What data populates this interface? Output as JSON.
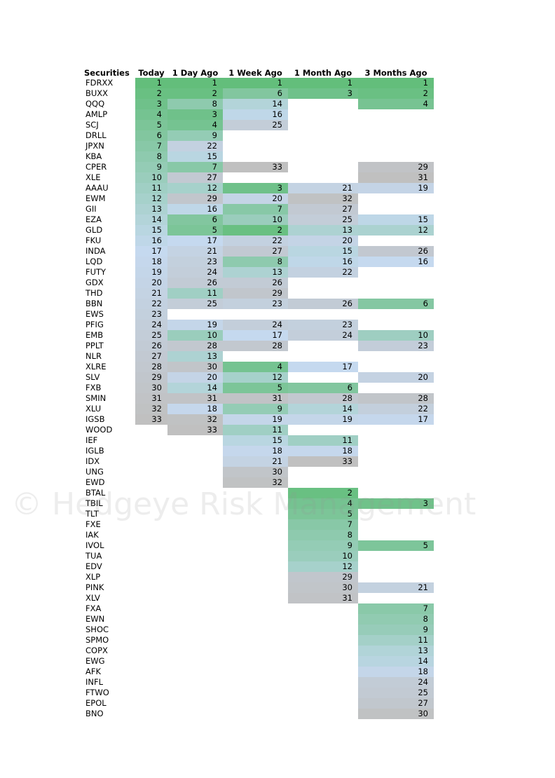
{
  "headers": [
    "Securities",
    "Today",
    "1 Day Ago",
    "1 Week Ago",
    "1 Month Ago",
    "3 Months Ago"
  ],
  "rows": [
    {
      "s": "FDRXX",
      "v": [
        1,
        1,
        1,
        1,
        1
      ]
    },
    {
      "s": "BUXX",
      "v": [
        2,
        2,
        6,
        3,
        2
      ]
    },
    {
      "s": "QQQ",
      "v": [
        3,
        8,
        14,
        null,
        4
      ]
    },
    {
      "s": "AMLP",
      "v": [
        4,
        3,
        16,
        null,
        null
      ]
    },
    {
      "s": "SCJ",
      "v": [
        5,
        4,
        25,
        null,
        null
      ]
    },
    {
      "s": "DRLL",
      "v": [
        6,
        9,
        null,
        null,
        null
      ]
    },
    {
      "s": "JPXN",
      "v": [
        7,
        22,
        null,
        null,
        null
      ]
    },
    {
      "s": "KBA",
      "v": [
        8,
        15,
        null,
        null,
        null
      ]
    },
    {
      "s": "CPER",
      "v": [
        9,
        7,
        33,
        null,
        29
      ]
    },
    {
      "s": "XLE",
      "v": [
        10,
        27,
        null,
        null,
        31
      ]
    },
    {
      "s": "AAAU",
      "v": [
        11,
        12,
        3,
        21,
        19
      ]
    },
    {
      "s": "EWM",
      "v": [
        12,
        29,
        20,
        32,
        null
      ]
    },
    {
      "s": "GII",
      "v": [
        13,
        16,
        7,
        27,
        null
      ]
    },
    {
      "s": "EZA",
      "v": [
        14,
        6,
        10,
        25,
        15
      ]
    },
    {
      "s": "GLD",
      "v": [
        15,
        5,
        2,
        13,
        12
      ]
    },
    {
      "s": "FKU",
      "v": [
        16,
        17,
        22,
        20,
        null
      ]
    },
    {
      "s": "INDA",
      "v": [
        17,
        21,
        27,
        15,
        26
      ]
    },
    {
      "s": "LQD",
      "v": [
        18,
        23,
        8,
        16,
        16
      ]
    },
    {
      "s": "FUTY",
      "v": [
        19,
        24,
        13,
        22,
        null
      ]
    },
    {
      "s": "GDX",
      "v": [
        20,
        26,
        26,
        null,
        null
      ]
    },
    {
      "s": "THD",
      "v": [
        21,
        11,
        29,
        null,
        null
      ]
    },
    {
      "s": "BBN",
      "v": [
        22,
        25,
        23,
        26,
        6
      ]
    },
    {
      "s": "EWS",
      "v": [
        23,
        null,
        null,
        null,
        null
      ]
    },
    {
      "s": "PFIG",
      "v": [
        24,
        19,
        24,
        23,
        null
      ]
    },
    {
      "s": "EMB",
      "v": [
        25,
        10,
        17,
        24,
        10
      ]
    },
    {
      "s": "PPLT",
      "v": [
        26,
        28,
        28,
        null,
        23
      ]
    },
    {
      "s": "NLR",
      "v": [
        27,
        13,
        null,
        null,
        null
      ]
    },
    {
      "s": "XLRE",
      "v": [
        28,
        30,
        4,
        17,
        null
      ]
    },
    {
      "s": "SLV",
      "v": [
        29,
        20,
        12,
        null,
        20
      ]
    },
    {
      "s": "FXB",
      "v": [
        30,
        14,
        5,
        6,
        null
      ]
    },
    {
      "s": "SMIN",
      "v": [
        31,
        31,
        31,
        28,
        28
      ]
    },
    {
      "s": "XLU",
      "v": [
        32,
        18,
        9,
        14,
        22
      ]
    },
    {
      "s": "IGSB",
      "v": [
        33,
        32,
        19,
        19,
        17
      ]
    },
    {
      "s": "WOOD",
      "v": [
        null,
        33,
        11,
        null,
        null
      ]
    },
    {
      "s": "IEF",
      "v": [
        null,
        null,
        15,
        11,
        null
      ]
    },
    {
      "s": "IGLB",
      "v": [
        null,
        null,
        18,
        18,
        null
      ]
    },
    {
      "s": "IDX",
      "v": [
        null,
        null,
        21,
        33,
        null
      ]
    },
    {
      "s": "UNG",
      "v": [
        null,
        null,
        30,
        null,
        null
      ]
    },
    {
      "s": "EWD",
      "v": [
        null,
        null,
        32,
        null,
        null
      ]
    },
    {
      "s": "BTAL",
      "v": [
        null,
        null,
        null,
        2,
        null
      ]
    },
    {
      "s": "TBIL",
      "v": [
        null,
        null,
        null,
        4,
        3
      ]
    },
    {
      "s": "TLT",
      "v": [
        null,
        null,
        null,
        5,
        null
      ]
    },
    {
      "s": "FXE",
      "v": [
        null,
        null,
        null,
        7,
        null
      ]
    },
    {
      "s": "IAK",
      "v": [
        null,
        null,
        null,
        8,
        null
      ]
    },
    {
      "s": "IVOL",
      "v": [
        null,
        null,
        null,
        9,
        5
      ]
    },
    {
      "s": "TUA",
      "v": [
        null,
        null,
        null,
        10,
        null
      ]
    },
    {
      "s": "EDV",
      "v": [
        null,
        null,
        null,
        12,
        null
      ]
    },
    {
      "s": "XLP",
      "v": [
        null,
        null,
        null,
        29,
        null
      ]
    },
    {
      "s": "PINK",
      "v": [
        null,
        null,
        null,
        30,
        21
      ]
    },
    {
      "s": "XLV",
      "v": [
        null,
        null,
        null,
        31,
        null
      ]
    },
    {
      "s": "FXA",
      "v": [
        null,
        null,
        null,
        null,
        7
      ]
    },
    {
      "s": "EWN",
      "v": [
        null,
        null,
        null,
        null,
        8
      ]
    },
    {
      "s": "SHOC",
      "v": [
        null,
        null,
        null,
        null,
        9
      ]
    },
    {
      "s": "SPMO",
      "v": [
        null,
        null,
        null,
        null,
        11
      ]
    },
    {
      "s": "COPX",
      "v": [
        null,
        null,
        null,
        null,
        13
      ]
    },
    {
      "s": "EWG",
      "v": [
        null,
        null,
        null,
        null,
        14
      ]
    },
    {
      "s": "AFK",
      "v": [
        null,
        null,
        null,
        null,
        18
      ]
    },
    {
      "s": "INFL",
      "v": [
        null,
        null,
        null,
        null,
        24
      ]
    },
    {
      "s": "FTWO",
      "v": [
        null,
        null,
        null,
        null,
        25
      ]
    },
    {
      "s": "EPOL",
      "v": [
        null,
        null,
        null,
        null,
        27
      ]
    },
    {
      "s": "BNO",
      "v": [
        null,
        null,
        null,
        null,
        30
      ]
    }
  ],
  "watermark": "© Hedgeye Risk Management",
  "colors": {
    "rank_low": "#63be7b",
    "rank_mid": "#c5d9ef",
    "rank_high": "#c0c0c0"
  }
}
